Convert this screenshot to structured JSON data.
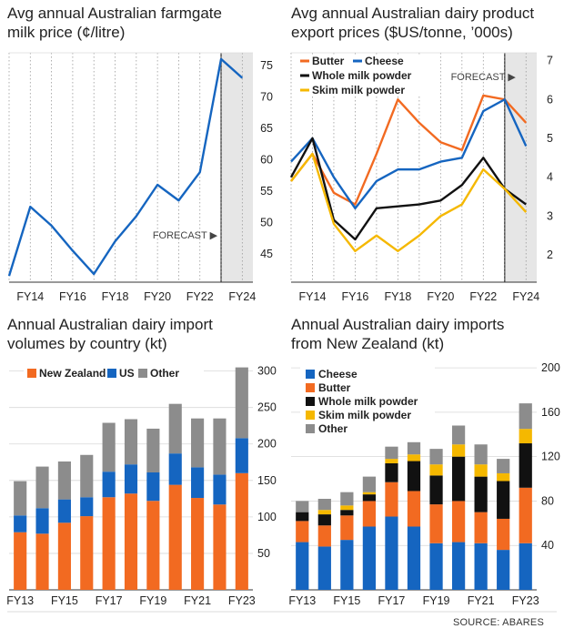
{
  "source": "SOURCE: ABARES",
  "colors": {
    "nz": "#f26a21",
    "us": "#1565c0",
    "other": "#8c8c8c",
    "cheese": "#1565c0",
    "butter": "#f26a21",
    "wmp": "#111111",
    "smp": "#f5b800",
    "grid": "#e0e0e0",
    "forecast": "#e6e6e6"
  },
  "chart_data": [
    {
      "type": "line",
      "title_lines": [
        "Avg annual Australian farmgate",
        "milk price (¢/litre)"
      ],
      "x": [
        2013,
        2014,
        2015,
        2016,
        2017,
        2018,
        2019,
        2020,
        2021,
        2022,
        2023,
        2024
      ],
      "x_tick_labels": [
        {
          "x": 2014,
          "label": "FY14"
        },
        {
          "x": 2016,
          "label": "FY16"
        },
        {
          "x": 2018,
          "label": "FY18"
        },
        {
          "x": 2020,
          "label": "FY20"
        },
        {
          "x": 2022,
          "label": "FY22"
        },
        {
          "x": 2024,
          "label": "FY24"
        }
      ],
      "y_ticks": [
        45,
        50,
        55,
        60,
        65,
        70,
        75
      ],
      "ylim": [
        40.5,
        77
      ],
      "xlim": [
        2013,
        2024.5
      ],
      "forecast": {
        "from": 2023,
        "label": "FORECAST ▶"
      },
      "series": [
        {
          "color": "#1565c0",
          "values": [
            41.5,
            52.5,
            49.5,
            45.5,
            41.8,
            47,
            51,
            56,
            53.5,
            58,
            76,
            73
          ]
        }
      ]
    },
    {
      "type": "line",
      "title_lines": [
        "Avg annual Australian dairy product",
        "export prices ($US/tonne, ’000s)"
      ],
      "x": [
        2013,
        2014,
        2015,
        2016,
        2017,
        2018,
        2019,
        2020,
        2021,
        2022,
        2023,
        2024
      ],
      "x_tick_labels": [
        {
          "x": 2014,
          "label": "FY14"
        },
        {
          "x": 2016,
          "label": "FY16"
        },
        {
          "x": 2018,
          "label": "FY18"
        },
        {
          "x": 2020,
          "label": "FY20"
        },
        {
          "x": 2022,
          "label": "FY22"
        },
        {
          "x": 2024,
          "label": "FY24"
        }
      ],
      "y_ticks": [
        2,
        3,
        4,
        5,
        6,
        7
      ],
      "ylim": [
        1.3,
        7.2
      ],
      "xlim": [
        2013,
        2024.5
      ],
      "forecast": {
        "from": 2023,
        "label": "FORECAST ▶"
      },
      "legend": [
        [
          "Butter",
          "Cheese"
        ],
        [
          "Whole milk powder"
        ],
        [
          "Skim milk powder"
        ]
      ],
      "series": [
        {
          "name": "Butter",
          "color": "#f26a21",
          "values": [
            3.9,
            4.6,
            3.6,
            3.3,
            4.6,
            6.0,
            5.4,
            4.9,
            4.7,
            6.1,
            6.0,
            5.4
          ]
        },
        {
          "name": "Cheese",
          "color": "#1565c0",
          "values": [
            4.4,
            5.0,
            4.0,
            3.2,
            3.9,
            4.2,
            4.2,
            4.4,
            4.5,
            5.7,
            6.0,
            4.8
          ]
        },
        {
          "name": "Whole milk powder",
          "color": "#111111",
          "values": [
            4.0,
            5.0,
            2.9,
            2.4,
            3.2,
            3.25,
            3.3,
            3.4,
            3.8,
            4.5,
            3.7,
            3.3
          ]
        },
        {
          "name": "Skim milk powder",
          "color": "#f5b800",
          "values": [
            3.9,
            4.6,
            2.8,
            2.1,
            2.5,
            2.1,
            2.5,
            3.0,
            3.3,
            4.2,
            3.7,
            3.1
          ]
        }
      ]
    },
    {
      "type": "bar",
      "stacked": true,
      "title_lines": [
        "Annual Australian dairy import",
        "volumes by country (kt)"
      ],
      "categories": [
        "FY13",
        "FY14",
        "FY15",
        "FY16",
        "FY17",
        "FY18",
        "FY19",
        "FY20",
        "FY21",
        "FY22",
        "FY23"
      ],
      "x_tick_labels": [
        "FY13",
        "",
        "FY15",
        "",
        "FY17",
        "",
        "FY19",
        "",
        "FY21",
        "",
        "FY23"
      ],
      "y_ticks": [
        50,
        100,
        150,
        200,
        250,
        300
      ],
      "ylim": [
        0,
        312
      ],
      "legend": [
        "New Zealand",
        "US",
        "Other"
      ],
      "series": [
        {
          "name": "New Zealand",
          "color": "#f26a21",
          "values": [
            79,
            77,
            92,
            101,
            127,
            132,
            122,
            144,
            126,
            117,
            160
          ]
        },
        {
          "name": "US",
          "color": "#1565c0",
          "values": [
            23,
            35,
            32,
            26,
            35,
            40,
            39,
            43,
            42,
            41,
            48
          ]
        },
        {
          "name": "Other",
          "color": "#8c8c8c",
          "values": [
            47,
            57,
            52,
            58,
            67,
            62,
            60,
            68,
            67,
            77,
            97
          ]
        }
      ]
    },
    {
      "type": "bar",
      "stacked": true,
      "title_lines": [
        "Annual Australian dairy imports",
        "from New Zealand (kt)"
      ],
      "categories": [
        "FY13",
        "FY14",
        "FY15",
        "FY16",
        "FY17",
        "FY18",
        "FY19",
        "FY20",
        "FY21",
        "FY22",
        "FY23"
      ],
      "x_tick_labels": [
        "FY13",
        "",
        "FY15",
        "",
        "FY17",
        "",
        "FY19",
        "",
        "FY21",
        "",
        "FY23"
      ],
      "y_ticks": [
        40,
        80,
        120,
        160,
        200
      ],
      "ylim": [
        0,
        205
      ],
      "legend": [
        "Cheese",
        "Butter",
        "Whole milk powder",
        "Skim milk powder",
        "Other"
      ],
      "series": [
        {
          "name": "Cheese",
          "color": "#1565c0",
          "values": [
            43,
            39,
            45,
            57,
            66,
            57,
            42,
            43,
            42,
            36,
            42
          ]
        },
        {
          "name": "Butter",
          "color": "#f26a21",
          "values": [
            19,
            19,
            22,
            23,
            31,
            32,
            35,
            37,
            28,
            28,
            50
          ]
        },
        {
          "name": "Whole milk powder",
          "color": "#111111",
          "values": [
            8,
            10,
            5,
            6,
            17,
            27,
            26,
            40,
            32,
            34,
            40
          ]
        },
        {
          "name": "Skim milk powder",
          "color": "#f5b800",
          "values": [
            0,
            4,
            4,
            2,
            4,
            6,
            10,
            11,
            11,
            7,
            13
          ]
        },
        {
          "name": "Other",
          "color": "#8c8c8c",
          "values": [
            10,
            10,
            12,
            14,
            11,
            11,
            14,
            17,
            18,
            13,
            23
          ]
        }
      ]
    }
  ]
}
